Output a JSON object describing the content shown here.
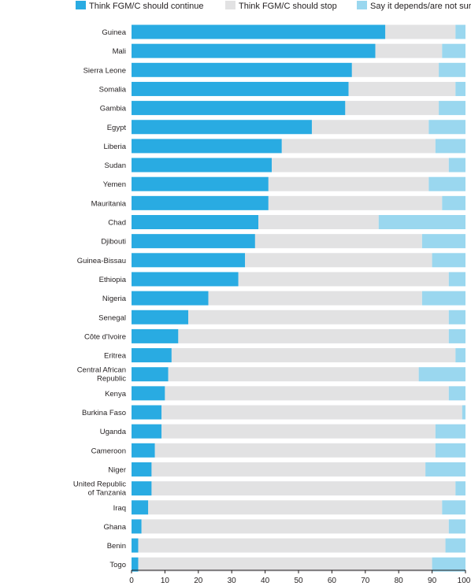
{
  "chart_data": {
    "type": "bar",
    "orientation": "horizontal",
    "stacked": true,
    "legend_position": "top",
    "grid": false,
    "xlim": [
      0,
      100
    ],
    "xticks": [
      0,
      10,
      20,
      30,
      40,
      50,
      60,
      70,
      80,
      90,
      100
    ],
    "categories": [
      [
        "Guinea"
      ],
      [
        "Mali"
      ],
      [
        "Sierra Leone"
      ],
      [
        "Somalia"
      ],
      [
        "Gambia"
      ],
      [
        "Egypt"
      ],
      [
        "Liberia"
      ],
      [
        "Sudan"
      ],
      [
        "Yemen"
      ],
      [
        "Mauritania"
      ],
      [
        "Chad"
      ],
      [
        "Djibouti"
      ],
      [
        "Guinea-Bissau"
      ],
      [
        "Ethiopia"
      ],
      [
        "Nigeria"
      ],
      [
        "Senegal"
      ],
      [
        "Côte d'Ivoire"
      ],
      [
        "Eritrea"
      ],
      [
        "Central African",
        "Republic"
      ],
      [
        "Kenya"
      ],
      [
        "Burkina Faso"
      ],
      [
        "Uganda"
      ],
      [
        "Cameroon"
      ],
      [
        "Niger"
      ],
      [
        "United Republic",
        "of Tanzania"
      ],
      [
        "Iraq"
      ],
      [
        "Ghana"
      ],
      [
        "Benin"
      ],
      [
        "Togo"
      ]
    ],
    "series": [
      {
        "name": "Think FGM/C should continue",
        "color": "#29abe2",
        "values": [
          76,
          73,
          66,
          65,
          64,
          54,
          45,
          42,
          41,
          41,
          38,
          37,
          34,
          32,
          23,
          17,
          14,
          12,
          11,
          10,
          9,
          9,
          7,
          6,
          6,
          5,
          3,
          2,
          2
        ]
      },
      {
        "name": "Think FGM/C should stop",
        "color": "#e2e2e3",
        "values": [
          21,
          20,
          26,
          32,
          28,
          35,
          46,
          53,
          48,
          52,
          36,
          50,
          56,
          63,
          64,
          78,
          81,
          85,
          75,
          85,
          90,
          82,
          84,
          82,
          91,
          88,
          92,
          92,
          88
        ]
      },
      {
        "name": "Say it depends/are not sure",
        "color": "#9ad7ef",
        "values": [
          3,
          7,
          8,
          3,
          8,
          11,
          9,
          5,
          11,
          7,
          26,
          13,
          10,
          5,
          13,
          5,
          5,
          3,
          14,
          5,
          1,
          9,
          9,
          12,
          3,
          7,
          5,
          6,
          10
        ]
      }
    ]
  }
}
